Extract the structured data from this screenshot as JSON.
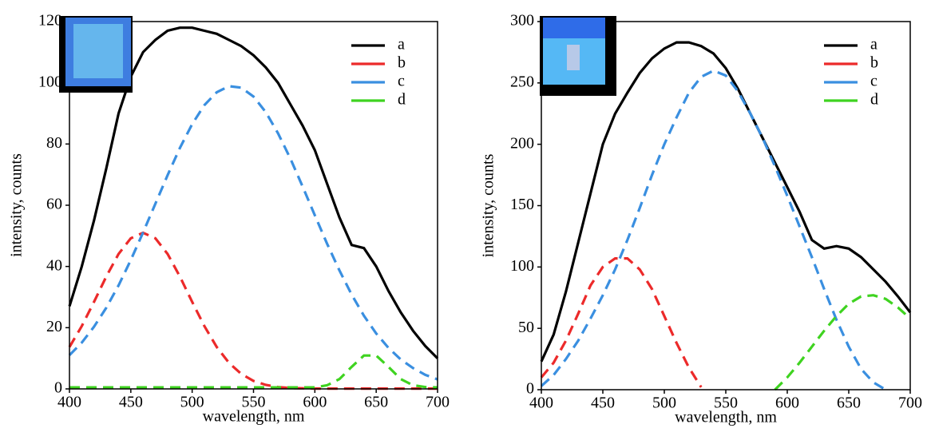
{
  "chart_data": [
    {
      "type": "line",
      "x_label": "wavelength, nm",
      "y_label": "intensity, counts",
      "x": [
        400,
        410,
        420,
        430,
        440,
        450,
        460,
        470,
        480,
        490,
        500,
        510,
        520,
        530,
        540,
        550,
        560,
        570,
        580,
        590,
        600,
        610,
        620,
        630,
        640,
        650,
        660,
        670,
        680,
        690,
        700
      ],
      "xlim": [
        400,
        700
      ],
      "xticks": [
        400,
        450,
        500,
        550,
        600,
        650,
        700
      ],
      "ylim": [
        0,
        120
      ],
      "yticks": [
        0,
        20,
        40,
        60,
        80,
        100,
        120
      ],
      "legend": "upper right",
      "series": [
        {
          "name": "a",
          "color": "#000000",
          "dash": false,
          "values": [
            27,
            40,
            55,
            72,
            90,
            102,
            110,
            114,
            117,
            118,
            118,
            117,
            116,
            114,
            112,
            109,
            105,
            100,
            93,
            86,
            78,
            67,
            56,
            47,
            46,
            40,
            32,
            25,
            19,
            14,
            10
          ]
        },
        {
          "name": "b",
          "color": "#ec2a2a",
          "dash": true,
          "values": [
            13.7,
            20.5,
            28.4,
            36.7,
            44.1,
            49.2,
            51,
            49.2,
            44.1,
            36.7,
            28.4,
            20.5,
            13.7,
            8.5,
            4.9,
            2.6,
            1.3,
            0.6,
            0.3,
            0.2,
            0.1,
            0.1,
            0.1,
            0.1,
            0.1,
            0.1,
            0.1,
            0.1,
            0.1,
            0.1,
            0.1
          ]
        },
        {
          "name": "c",
          "color": "#3a8fe0",
          "dash": true,
          "values": [
            11,
            15.1,
            20.3,
            26.5,
            33.8,
            42.1,
            51.1,
            60.5,
            69.8,
            78.7,
            86.5,
            92.7,
            96.9,
            98.9,
            98.4,
            95.5,
            90.4,
            83.5,
            75.3,
            66.1,
            56.7,
            47.4,
            38.7,
            30.8,
            23.9,
            18.1,
            13.4,
            9.6,
            6.8,
            4.6,
            3.1
          ]
        },
        {
          "name": "d",
          "color": "#3fd320",
          "dash": true,
          "values": [
            0.5,
            0.5,
            0.5,
            0.5,
            0.5,
            0.5,
            0.5,
            0.5,
            0.5,
            0.5,
            0.5,
            0.5,
            0.5,
            0.5,
            0.5,
            0.5,
            0.5,
            0.5,
            0.5,
            0.5,
            0.5,
            1.2,
            3.2,
            7.2,
            10.9,
            10.9,
            7.2,
            3.2,
            1.2,
            0.6,
            0.5
          ]
        }
      ]
    },
    {
      "type": "line",
      "x_label": "wavelength, nm",
      "y_label": "intensity, counts",
      "x": [
        400,
        410,
        420,
        430,
        440,
        450,
        460,
        470,
        480,
        490,
        500,
        510,
        520,
        530,
        540,
        550,
        560,
        570,
        580,
        590,
        600,
        610,
        620,
        630,
        640,
        650,
        660,
        670,
        680,
        690,
        700
      ],
      "xlim": [
        400,
        700
      ],
      "xticks": [
        400,
        450,
        500,
        550,
        600,
        650,
        700
      ],
      "ylim": [
        0,
        300
      ],
      "yticks": [
        0,
        50,
        100,
        150,
        200,
        250,
        300
      ],
      "legend": "upper right",
      "series": [
        {
          "name": "a",
          "color": "#000000",
          "dash": false,
          "values": [
            23,
            45,
            80,
            120,
            160,
            200,
            225,
            242,
            258,
            270,
            278,
            283,
            283,
            280,
            274,
            262,
            245,
            225,
            205,
            185,
            165,
            145,
            122,
            115,
            117,
            115,
            108,
            98,
            88,
            76,
            63
          ]
        },
        {
          "name": "b",
          "color": "#ec2a2a",
          "dash": true,
          "values": [
            10,
            22,
            40,
            62,
            85,
            100,
            107,
            107,
            98,
            82,
            60,
            38,
            18,
            2,
            null,
            null,
            null,
            null,
            null,
            null,
            null,
            null,
            null,
            null,
            null,
            null,
            null,
            null,
            null,
            null,
            null
          ]
        },
        {
          "name": "c",
          "color": "#3a8fe0",
          "dash": true,
          "values": [
            3,
            12,
            25,
            40,
            58,
            77,
            98,
            122,
            148,
            175,
            200,
            222,
            242,
            255,
            260,
            256,
            243,
            225,
            205,
            182,
            158,
            133,
            108,
            82,
            57,
            35,
            17,
            6,
            0,
            null,
            null
          ]
        },
        {
          "name": "d",
          "color": "#3fd320",
          "dash": true,
          "values": [
            null,
            null,
            null,
            null,
            null,
            null,
            null,
            null,
            null,
            null,
            null,
            null,
            null,
            null,
            null,
            null,
            null,
            null,
            null,
            0,
            10,
            22,
            35,
            48,
            60,
            70,
            76,
            77,
            74,
            67,
            58
          ]
        }
      ]
    }
  ]
}
